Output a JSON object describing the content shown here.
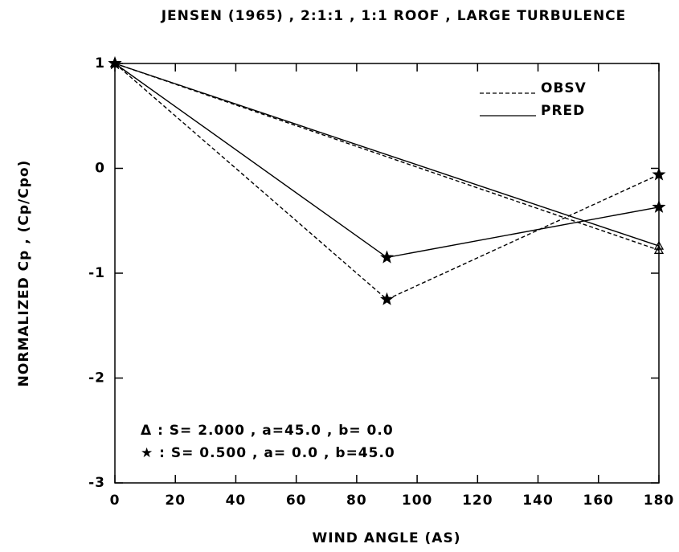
{
  "chart_data": {
    "type": "line",
    "title": "JENSEN (1965) , 2:1:1 , 1:1 ROOF , LARGE TURBULENCE",
    "xlabel": "WIND ANGLE (AS)",
    "ylabel": "NORMALIZED Cp , (Cp/Cpo)",
    "xlim": [
      0,
      180
    ],
    "xticks": [
      0,
      20,
      40,
      60,
      80,
      100,
      120,
      140,
      160,
      180
    ],
    "ylim": [
      -3,
      1
    ],
    "yticks": [
      -3,
      -2,
      -1,
      0,
      1
    ],
    "legend": [
      {
        "label": "OBSV",
        "style": "dashed"
      },
      {
        "label": "PRED",
        "style": "solid"
      }
    ],
    "annotations": [
      "Δ : S= 2.000 , a=45.0 , b= 0.0",
      "★ : S= 0.500 , a= 0.0 , b=45.0"
    ],
    "series": [
      {
        "style": "dashed",
        "marker": "triangle",
        "color": "#000000",
        "x": [
          0,
          180
        ],
        "values": [
          1,
          -0.78
        ]
      },
      {
        "style": "solid",
        "marker": "triangle",
        "color": "#000000",
        "x": [
          0,
          180
        ],
        "values": [
          1,
          -0.74
        ]
      },
      {
        "style": "dashed",
        "marker": "star",
        "color": "#000000",
        "x": [
          0,
          90,
          180
        ],
        "values": [
          1,
          -1.25,
          -0.06
        ]
      },
      {
        "style": "solid",
        "marker": "star",
        "color": "#000000",
        "x": [
          0,
          90,
          180
        ],
        "values": [
          1,
          -0.85,
          -0.37
        ]
      }
    ]
  }
}
